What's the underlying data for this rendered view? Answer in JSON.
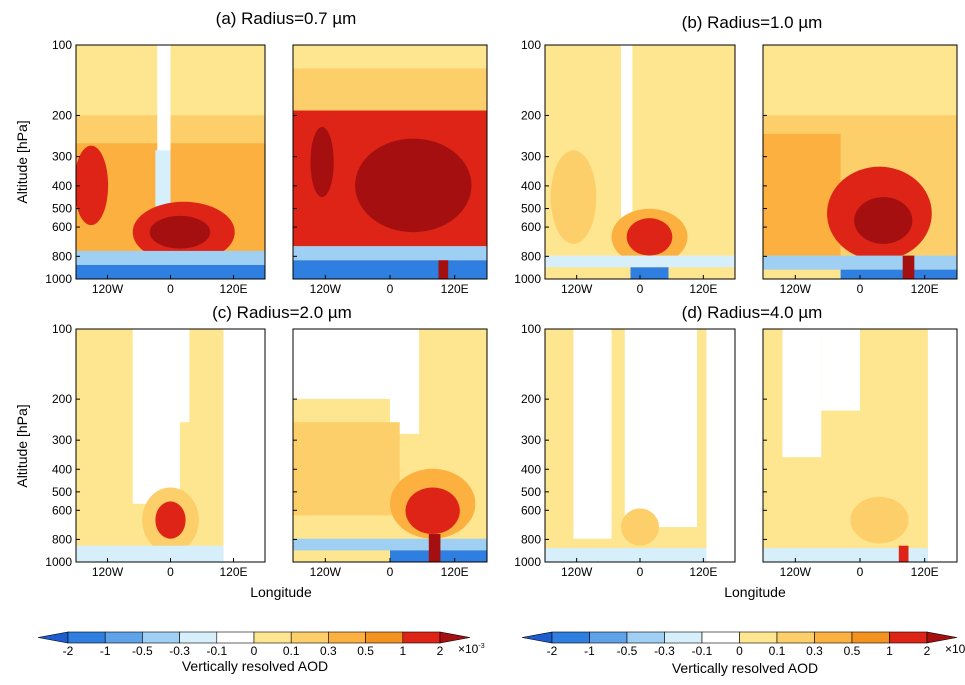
{
  "figure": {
    "panel_titles": [
      "(a) Radius=0.7 µm",
      "(b) Radius=1.0 µm",
      "(c) Radius=2.0 µm",
      "(d) Radius=4.0 µm"
    ],
    "ylabel": "Altitude [hPa]",
    "xlabel": "Longitude",
    "y_log": true,
    "ylim": [
      1000,
      100
    ],
    "yticks": [
      100,
      200,
      300,
      400,
      500,
      600,
      800,
      1000
    ],
    "xlim": [
      -180,
      180
    ],
    "xticks": [
      {
        "value": -120,
        "label": "120W"
      },
      0,
      {
        "value": 120,
        "label": "120E"
      }
    ],
    "colorbar": {
      "label": "Vertically resolved AOD",
      "levels": [
        -2,
        -1,
        -0.5,
        -0.3,
        -0.1,
        0,
        0.1,
        0.3,
        0.5,
        1,
        2
      ],
      "colors": [
        "#1c5ccf",
        "#2f7fe0",
        "#5ea3ea",
        "#9fd0f3",
        "#d6effa",
        "#ffffff",
        "#fee690",
        "#fdcf6a",
        "#fbb040",
        "#f49220",
        "#de2416",
        "#a50f10"
      ],
      "unit_base": "×10",
      "unit_exp": "-3"
    }
  }
}
